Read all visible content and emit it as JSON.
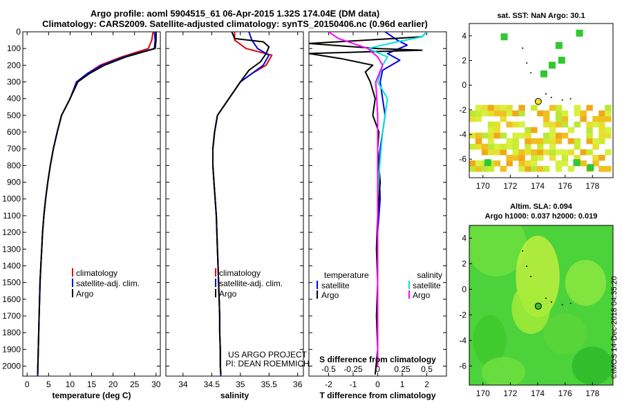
{
  "header": {
    "line1": "Argo profile: aoml 5904515_61 06-Apr-2015 1.32S 174.04E (DM data)",
    "line2": "Climatology: CARS2009. Satellite-adjusted climatology: synTS_20150406.nc (0.96d earlier)"
  },
  "colors": {
    "climatology": "#e00000",
    "satellite": "#0000e0",
    "argo": "#000000",
    "argo_diff_s": "#ff00ff",
    "satellite_diff_s": "#00e0e0"
  },
  "depth_axis": {
    "ticks": [
      0,
      100,
      200,
      300,
      400,
      500,
      600,
      700,
      800,
      900,
      1000,
      1100,
      1200,
      1300,
      1400,
      1500,
      1600,
      1700,
      1800,
      1900,
      2000
    ],
    "range": [
      0,
      2060
    ]
  },
  "chart_data": [
    {
      "type": "line",
      "id": "temperature",
      "xlabel": "temperature (deg C)",
      "xlim": [
        -1,
        31
      ],
      "xticks": [
        0,
        5,
        10,
        15,
        20,
        25,
        30
      ],
      "legend": {
        "placement": "lower-center",
        "entries": [
          "climatology",
          "satellite-adj. clim.",
          "Argo"
        ]
      },
      "series": [
        {
          "name": "climatology",
          "color": "#e00000",
          "points": [
            [
              29.3,
              0
            ],
            [
              29.0,
              50
            ],
            [
              28.2,
              100
            ],
            [
              22.0,
              150
            ],
            [
              17.0,
              200
            ],
            [
              14.0,
              250
            ],
            [
              11.5,
              300
            ],
            [
              10.0,
              400
            ],
            [
              8.0,
              500
            ],
            [
              7.0,
              600
            ],
            [
              6.1,
              700
            ],
            [
              5.4,
              800
            ],
            [
              4.8,
              900
            ],
            [
              4.3,
              1000
            ],
            [
              3.9,
              1100
            ],
            [
              3.6,
              1200
            ],
            [
              3.4,
              1300
            ],
            [
              3.2,
              1400
            ],
            [
              3.0,
              1500
            ],
            [
              2.9,
              1600
            ],
            [
              2.8,
              1700
            ],
            [
              2.7,
              1800
            ],
            [
              2.6,
              1900
            ],
            [
              2.5,
              2000
            ],
            [
              2.45,
              2060
            ]
          ]
        },
        {
          "name": "satellite-adj. clim.",
          "color": "#0000e0",
          "points": [
            [
              29.6,
              0
            ],
            [
              29.8,
              50
            ],
            [
              29.6,
              100
            ],
            [
              22.5,
              150
            ],
            [
              17.5,
              200
            ],
            [
              14.0,
              250
            ],
            [
              11.5,
              300
            ],
            [
              10.0,
              400
            ],
            [
              8.0,
              500
            ],
            [
              7.0,
              600
            ],
            [
              6.1,
              700
            ],
            [
              5.4,
              800
            ],
            [
              4.8,
              900
            ],
            [
              4.3,
              1000
            ],
            [
              3.9,
              1100
            ],
            [
              3.6,
              1200
            ],
            [
              3.4,
              1300
            ],
            [
              3.2,
              1400
            ],
            [
              3.0,
              1500
            ],
            [
              2.9,
              1600
            ],
            [
              2.8,
              1700
            ],
            [
              2.7,
              1800
            ],
            [
              2.6,
              1900
            ],
            [
              2.5,
              2000
            ],
            [
              2.45,
              2060
            ]
          ]
        },
        {
          "name": "Argo",
          "color": "#000000",
          "points": [
            [
              30.0,
              0
            ],
            [
              30.0,
              50
            ],
            [
              29.8,
              100
            ],
            [
              23.0,
              150
            ],
            [
              18.0,
              200
            ],
            [
              14.5,
              250
            ],
            [
              11.8,
              300
            ],
            [
              10.0,
              400
            ],
            [
              8.0,
              500
            ],
            [
              7.0,
              600
            ],
            [
              6.1,
              700
            ],
            [
              5.4,
              800
            ],
            [
              4.8,
              900
            ],
            [
              4.3,
              1000
            ],
            [
              3.9,
              1100
            ],
            [
              3.6,
              1200
            ],
            [
              3.4,
              1300
            ],
            [
              3.2,
              1400
            ],
            [
              3.0,
              1500
            ],
            [
              2.9,
              1600
            ],
            [
              2.8,
              1700
            ],
            [
              2.7,
              1800
            ],
            [
              2.6,
              1900
            ],
            [
              2.5,
              2000
            ],
            [
              2.45,
              2050
            ]
          ]
        }
      ]
    },
    {
      "type": "line",
      "id": "salinity",
      "xlabel": "salinity",
      "xlim": [
        33.7,
        36.1
      ],
      "xticks": [
        34,
        34.5,
        35,
        35.5,
        36
      ],
      "legend": {
        "placement": "lower-center",
        "entries": [
          "climatology",
          "satellite-adj. clim.",
          "Argo"
        ]
      },
      "annotation": [
        "US ARGO PROJECT",
        "PI: DEAN ROEMMICH"
      ],
      "series": [
        {
          "name": "climatology",
          "color": "#e00000",
          "points": [
            [
              34.9,
              0
            ],
            [
              34.9,
              50
            ],
            [
              35.1,
              100
            ],
            [
              35.55,
              140
            ],
            [
              35.45,
              200
            ],
            [
              35.2,
              250
            ],
            [
              35.0,
              300
            ],
            [
              34.8,
              400
            ],
            [
              34.6,
              500
            ],
            [
              34.55,
              600
            ],
            [
              34.52,
              700
            ],
            [
              34.52,
              800
            ],
            [
              34.54,
              900
            ],
            [
              34.56,
              1000
            ],
            [
              34.58,
              1100
            ],
            [
              34.59,
              1200
            ],
            [
              34.6,
              1300
            ],
            [
              34.61,
              1400
            ],
            [
              34.62,
              1500
            ],
            [
              34.63,
              1600
            ],
            [
              34.64,
              1700
            ],
            [
              34.64,
              1800
            ],
            [
              34.65,
              1900
            ],
            [
              34.65,
              2000
            ],
            [
              34.66,
              2060
            ]
          ]
        },
        {
          "name": "satellite-adj. clim.",
          "color": "#0000e0",
          "points": [
            [
              35.15,
              0
            ],
            [
              35.2,
              50
            ],
            [
              35.3,
              100
            ],
            [
              35.5,
              140
            ],
            [
              35.4,
              200
            ],
            [
              35.2,
              250
            ],
            [
              35.0,
              300
            ],
            [
              34.8,
              400
            ],
            [
              34.6,
              500
            ],
            [
              34.55,
              600
            ],
            [
              34.52,
              700
            ],
            [
              34.52,
              800
            ],
            [
              34.54,
              900
            ],
            [
              34.56,
              1000
            ],
            [
              34.58,
              1100
            ],
            [
              34.59,
              1200
            ],
            [
              34.6,
              1300
            ],
            [
              34.61,
              1400
            ],
            [
              34.62,
              1500
            ],
            [
              34.63,
              1600
            ],
            [
              34.64,
              1700
            ],
            [
              34.64,
              1800
            ],
            [
              34.65,
              1900
            ],
            [
              34.65,
              2000
            ],
            [
              34.66,
              2060
            ]
          ]
        },
        {
          "name": "Argo",
          "color": "#000000",
          "points": [
            [
              34.85,
              0
            ],
            [
              34.9,
              40
            ],
            [
              35.4,
              60
            ],
            [
              35.5,
              90
            ],
            [
              35.45,
              130
            ],
            [
              35.35,
              180
            ],
            [
              35.15,
              230
            ],
            [
              35.0,
              300
            ],
            [
              34.8,
              400
            ],
            [
              34.6,
              500
            ],
            [
              34.55,
              600
            ],
            [
              34.52,
              700
            ],
            [
              34.52,
              800
            ],
            [
              34.54,
              900
            ],
            [
              34.56,
              1000
            ],
            [
              34.58,
              1100
            ],
            [
              34.59,
              1200
            ],
            [
              34.6,
              1300
            ],
            [
              34.61,
              1400
            ],
            [
              34.62,
              1500
            ],
            [
              34.63,
              1600
            ],
            [
              34.64,
              1700
            ],
            [
              34.64,
              1800
            ],
            [
              34.65,
              1900
            ],
            [
              34.65,
              2000
            ],
            [
              34.66,
              2050
            ]
          ]
        }
      ]
    },
    {
      "type": "line",
      "id": "difference",
      "xlabel": "T difference from climatology",
      "xlabel_top": "S difference from climatology",
      "xlim": [
        -2.8,
        2.8
      ],
      "xticks": [
        -2,
        -1,
        0,
        1,
        2
      ],
      "xticks_s": [
        "-0.5",
        "-0.25",
        "0",
        "0.25",
        "0.5"
      ],
      "s_scale": 4,
      "legend": {
        "placement": "lower-center",
        "temperature_header": "temperature",
        "salinity_header": "salinity",
        "entries": [
          "satellite",
          "Argo",
          "satellite",
          "Argo"
        ]
      },
      "series": [
        {
          "name": "satellite",
          "quantity": "temperature",
          "color": "#0000e0",
          "points": [
            [
              0.3,
              0
            ],
            [
              0.8,
              50
            ],
            [
              1.2,
              80
            ],
            [
              0.4,
              130
            ],
            [
              0.9,
              170
            ],
            [
              0.2,
              230
            ],
            [
              0.1,
              300
            ],
            [
              0.2,
              400
            ],
            [
              0.3,
              500
            ],
            [
              0.2,
              600
            ],
            [
              0.1,
              700
            ],
            [
              0.05,
              800
            ],
            [
              0.1,
              1000
            ],
            [
              0.0,
              1200
            ],
            [
              0.0,
              1500
            ],
            [
              0.0,
              2000
            ]
          ]
        },
        {
          "name": "Argo",
          "quantity": "temperature",
          "color": "#000000",
          "points": [
            [
              2.0,
              0
            ],
            [
              1.8,
              30
            ],
            [
              -2.8,
              70
            ],
            [
              0.0,
              100
            ],
            [
              1.8,
              110
            ],
            [
              -2.8,
              130
            ],
            [
              -1.5,
              160
            ],
            [
              -0.2,
              200
            ],
            [
              -0.5,
              240
            ],
            [
              -0.3,
              300
            ],
            [
              -0.1,
              400
            ],
            [
              -0.2,
              500
            ],
            [
              0.05,
              600
            ],
            [
              0.0,
              700
            ],
            [
              0.1,
              900
            ],
            [
              0.0,
              1100
            ],
            [
              -0.05,
              1300
            ],
            [
              0.0,
              1500
            ],
            [
              -0.05,
              1700
            ],
            [
              0.0,
              1900
            ],
            [
              -0.1,
              2050
            ]
          ]
        },
        {
          "name": "satellite",
          "quantity": "salinity",
          "color": "#00e0e0",
          "points": [
            [
              0.5,
              0
            ],
            [
              0.45,
              30
            ],
            [
              0.2,
              60
            ],
            [
              -0.1,
              100
            ],
            [
              0.1,
              150
            ],
            [
              0.05,
              200
            ],
            [
              0.0,
              300
            ],
            [
              0.1,
              400
            ],
            [
              0.05,
              600
            ],
            [
              0.02,
              800
            ],
            [
              0.0,
              1000
            ],
            [
              0.0,
              1500
            ],
            [
              0.0,
              2000
            ]
          ]
        },
        {
          "name": "Argo",
          "quantity": "salinity",
          "color": "#ff00ff",
          "points": [
            [
              -0.5,
              0
            ],
            [
              -0.45,
              20
            ],
            [
              -0.4,
              40
            ],
            [
              -0.2,
              80
            ],
            [
              -0.1,
              100
            ],
            [
              0.0,
              150
            ],
            [
              0.05,
              200
            ],
            [
              -0.02,
              300
            ],
            [
              0.0,
              500
            ],
            [
              0.0,
              1000
            ],
            [
              0.0,
              1500
            ],
            [
              0.0,
              2000
            ]
          ]
        }
      ]
    },
    {
      "type": "heatmap",
      "id": "sst_map",
      "title": "sat. SST: NaN Argo: 30.1",
      "xlim": [
        169,
        179.5
      ],
      "ylim": [
        -7.5,
        5
      ],
      "xticks": [
        170,
        172,
        174,
        176,
        178
      ],
      "yticks": [
        -6,
        -4,
        -2,
        0,
        2,
        4
      ],
      "profile_location": [
        174.04,
        -1.32
      ]
    },
    {
      "type": "heatmap",
      "id": "sla_map",
      "title_line1": "Altim. SLA: 0.094",
      "title_line2": "Argo h1000: 0.037 h2000: 0.019",
      "xlim": [
        169,
        179.5
      ],
      "ylim": [
        -7.5,
        5
      ],
      "xticks": [
        170,
        172,
        174,
        176,
        178
      ],
      "yticks": [
        -6,
        -4,
        -2,
        0,
        2,
        4
      ],
      "profile_location": [
        174.04,
        -1.32
      ]
    }
  ],
  "credit": "©IMOS 14-Dec-2018 04:35:20"
}
